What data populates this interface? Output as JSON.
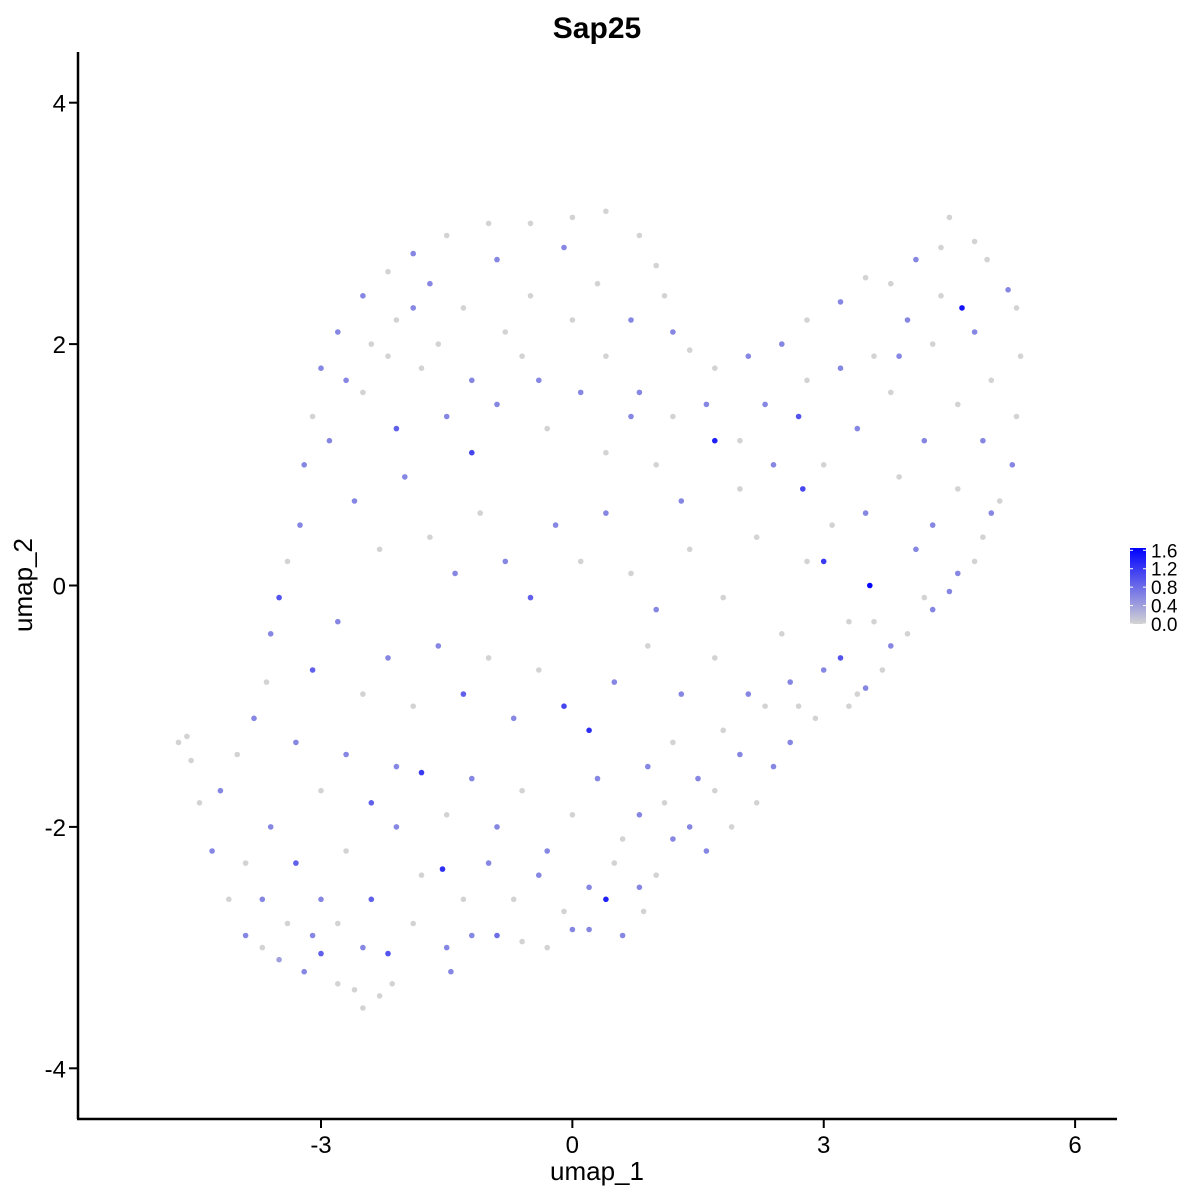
{
  "chart_data": {
    "type": "scatter",
    "title": "Sap25",
    "xlabel": "umap_1",
    "ylabel": "umap_2",
    "xlim": [
      -5.9,
      6.5
    ],
    "ylim": [
      -4.42,
      4.42
    ],
    "x_ticks": [
      -3,
      0,
      3,
      6
    ],
    "y_ticks": [
      -4,
      -2,
      0,
      2,
      4
    ],
    "x_tick_labels": [
      "-3",
      "0",
      "3",
      "6"
    ],
    "y_tick_labels": [
      "-4",
      "-2",
      "0",
      "2",
      "4"
    ],
    "grid": false,
    "legend": {
      "placement": "right",
      "type": "colorbar",
      "title": "",
      "min": 0.0,
      "max": 1.65,
      "breaks": [
        0.0,
        0.4,
        0.8,
        1.2,
        1.6
      ],
      "labels": [
        "0.0",
        "0.4",
        "0.8",
        "1.2",
        "1.6"
      ],
      "low_color": "#d3d3d3",
      "high_color": "#0000ff"
    },
    "series": [
      {
        "points": [
          [
            -4.6,
            -1.25,
            0.0
          ],
          [
            -4.7,
            -1.3,
            0.0
          ],
          [
            -4.55,
            -1.45,
            0.0
          ],
          [
            -4.45,
            -1.8,
            0.0
          ],
          [
            -4.3,
            -2.2,
            0.6
          ],
          [
            -4.1,
            -2.6,
            0.0
          ],
          [
            -3.9,
            -2.9,
            0.6
          ],
          [
            -3.7,
            -3.0,
            0.0
          ],
          [
            -3.5,
            -3.1,
            0.4
          ],
          [
            -3.2,
            -3.2,
            0.6
          ],
          [
            -3.0,
            -3.05,
            0.9
          ],
          [
            -2.8,
            -3.3,
            0.0
          ],
          [
            -2.6,
            -3.35,
            0.0
          ],
          [
            -2.5,
            -3.5,
            0.0
          ],
          [
            -2.3,
            -3.4,
            0.0
          ],
          [
            -2.15,
            -3.3,
            0.0
          ],
          [
            -2.2,
            -3.05,
            1.0
          ],
          [
            -1.45,
            -3.2,
            0.6
          ],
          [
            -1.5,
            -3.0,
            0.6
          ],
          [
            -0.9,
            -2.9,
            0.8
          ],
          [
            -0.3,
            -3.0,
            0.0
          ],
          [
            0.2,
            -2.85,
            0.6
          ],
          [
            0.4,
            -2.6,
            1.4
          ],
          [
            0.6,
            -2.9,
            0.6
          ],
          [
            0.85,
            -2.7,
            0.0
          ],
          [
            1.0,
            -2.4,
            0.0
          ],
          [
            1.2,
            -2.1,
            0.6
          ],
          [
            1.6,
            -2.2,
            0.6
          ],
          [
            1.9,
            -2.0,
            0.0
          ],
          [
            2.2,
            -1.8,
            0.0
          ],
          [
            2.6,
            -1.3,
            0.6
          ],
          [
            2.9,
            -1.1,
            0.0
          ],
          [
            3.3,
            -1.0,
            0.0
          ],
          [
            3.5,
            -0.85,
            0.6
          ],
          [
            3.7,
            -0.7,
            0.0
          ],
          [
            4.0,
            -0.4,
            0.0
          ],
          [
            4.3,
            -0.2,
            0.6
          ],
          [
            4.6,
            0.1,
            0.6
          ],
          [
            4.9,
            0.4,
            0.0
          ],
          [
            5.1,
            0.7,
            0.0
          ],
          [
            5.25,
            1.0,
            0.6
          ],
          [
            5.3,
            1.4,
            0.0
          ],
          [
            5.35,
            1.9,
            0.0
          ],
          [
            5.3,
            2.3,
            0.0
          ],
          [
            5.2,
            2.45,
            0.6
          ],
          [
            4.95,
            2.7,
            0.0
          ],
          [
            4.8,
            2.85,
            0.0
          ],
          [
            4.5,
            3.05,
            0.0
          ],
          [
            4.4,
            2.8,
            0.0
          ],
          [
            4.1,
            2.7,
            0.6
          ],
          [
            3.8,
            2.5,
            0.0
          ],
          [
            3.5,
            2.55,
            0.0
          ],
          [
            3.2,
            2.35,
            0.6
          ],
          [
            2.8,
            2.2,
            0.0
          ],
          [
            2.5,
            2.0,
            0.6
          ],
          [
            2.1,
            1.9,
            0.6
          ],
          [
            1.7,
            1.8,
            0.0
          ],
          [
            1.4,
            1.95,
            0.0
          ],
          [
            1.2,
            2.1,
            0.6
          ],
          [
            1.1,
            2.4,
            0.0
          ],
          [
            1.0,
            2.65,
            0.0
          ],
          [
            0.8,
            2.9,
            0.0
          ],
          [
            0.4,
            3.1,
            0.0
          ],
          [
            0.0,
            3.05,
            0.0
          ],
          [
            -0.5,
            3.0,
            0.0
          ],
          [
            -1.0,
            3.0,
            0.0
          ],
          [
            -1.5,
            2.9,
            0.0
          ],
          [
            -1.9,
            2.75,
            0.6
          ],
          [
            -2.2,
            2.6,
            0.0
          ],
          [
            -2.5,
            2.4,
            0.6
          ],
          [
            -2.8,
            2.1,
            0.6
          ],
          [
            -3.0,
            1.8,
            0.6
          ],
          [
            -3.1,
            1.4,
            0.0
          ],
          [
            -3.2,
            1.0,
            0.6
          ],
          [
            -3.25,
            0.5,
            0.6
          ],
          [
            -3.4,
            0.2,
            0.0
          ],
          [
            -3.5,
            -0.1,
            1.0
          ],
          [
            -3.6,
            -0.4,
            0.6
          ],
          [
            -3.65,
            -0.8,
            0.0
          ],
          [
            -3.8,
            -1.1,
            0.6
          ],
          [
            -4.0,
            -1.4,
            0.0
          ],
          [
            -4.2,
            -1.7,
            0.6
          ],
          [
            -2.9,
            1.2,
            0.6
          ],
          [
            -2.5,
            1.6,
            0.0
          ],
          [
            -2.1,
            1.3,
            0.9
          ],
          [
            -1.8,
            1.8,
            0.0
          ],
          [
            -1.5,
            1.4,
            0.6
          ],
          [
            -1.2,
            1.1,
            1.1
          ],
          [
            -0.9,
            1.5,
            0.6
          ],
          [
            -0.6,
            1.9,
            0.0
          ],
          [
            -0.3,
            1.3,
            0.0
          ],
          [
            0.1,
            1.6,
            0.6
          ],
          [
            0.4,
            1.1,
            0.0
          ],
          [
            0.7,
            1.4,
            0.6
          ],
          [
            1.0,
            1.0,
            0.0
          ],
          [
            1.3,
            0.7,
            0.6
          ],
          [
            1.7,
            1.2,
            1.4
          ],
          [
            2.0,
            0.8,
            0.0
          ],
          [
            2.3,
            1.5,
            0.6
          ],
          [
            2.7,
            1.4,
            1.0
          ],
          [
            3.0,
            1.0,
            0.0
          ],
          [
            3.4,
            1.3,
            0.6
          ],
          [
            3.8,
            1.6,
            0.0
          ],
          [
            4.2,
            1.2,
            0.6
          ],
          [
            4.6,
            1.5,
            0.0
          ],
          [
            4.65,
            2.3,
            1.5
          ],
          [
            4.3,
            2.0,
            0.0
          ],
          [
            3.9,
            1.9,
            0.6
          ],
          [
            2.75,
            0.8,
            1.1
          ],
          [
            3.0,
            0.2,
            1.2
          ],
          [
            3.55,
            0.0,
            1.6
          ],
          [
            3.2,
            -0.6,
            1.0
          ],
          [
            3.6,
            -0.3,
            0.0
          ],
          [
            4.1,
            0.3,
            0.6
          ],
          [
            -2.6,
            0.7,
            0.6
          ],
          [
            -2.3,
            0.3,
            0.0
          ],
          [
            -2.0,
            0.9,
            0.6
          ],
          [
            -1.7,
            0.4,
            0.0
          ],
          [
            -1.4,
            0.1,
            0.6
          ],
          [
            -1.1,
            0.6,
            0.0
          ],
          [
            -0.8,
            0.2,
            0.6
          ],
          [
            -0.5,
            -0.1,
            0.9
          ],
          [
            -0.2,
            0.5,
            0.6
          ],
          [
            0.1,
            0.2,
            0.0
          ],
          [
            0.4,
            0.6,
            0.6
          ],
          [
            0.7,
            0.1,
            0.0
          ],
          [
            1.0,
            -0.2,
            0.6
          ],
          [
            1.4,
            0.3,
            0.0
          ],
          [
            1.8,
            -0.1,
            0.0
          ],
          [
            2.2,
            0.4,
            0.0
          ],
          [
            2.5,
            -0.4,
            0.0
          ],
          [
            2.1,
            -0.9,
            0.6
          ],
          [
            1.7,
            -0.6,
            0.0
          ],
          [
            1.3,
            -0.9,
            0.6
          ],
          [
            0.9,
            -0.5,
            0.0
          ],
          [
            0.5,
            -0.8,
            0.6
          ],
          [
            0.2,
            -1.2,
            1.3
          ],
          [
            -0.1,
            -1.0,
            1.1
          ],
          [
            -0.4,
            -0.7,
            0.0
          ],
          [
            -0.7,
            -1.1,
            0.6
          ],
          [
            -1.0,
            -0.6,
            0.0
          ],
          [
            -1.3,
            -0.9,
            0.9
          ],
          [
            -1.6,
            -0.5,
            0.6
          ],
          [
            -1.9,
            -1.0,
            0.0
          ],
          [
            -2.2,
            -0.6,
            0.6
          ],
          [
            -2.5,
            -0.9,
            0.0
          ],
          [
            -2.8,
            -0.3,
            0.6
          ],
          [
            -3.1,
            -0.7,
            0.9
          ],
          [
            -3.3,
            -1.3,
            0.6
          ],
          [
            -3.0,
            -1.7,
            0.0
          ],
          [
            -2.7,
            -1.4,
            0.6
          ],
          [
            -2.4,
            -1.8,
            0.9
          ],
          [
            -2.1,
            -1.5,
            0.6
          ],
          [
            -1.8,
            -1.55,
            1.2
          ],
          [
            -1.5,
            -1.9,
            0.0
          ],
          [
            -1.2,
            -1.6,
            0.6
          ],
          [
            -0.9,
            -2.0,
            0.6
          ],
          [
            -0.6,
            -1.7,
            0.0
          ],
          [
            -0.3,
            -2.2,
            0.6
          ],
          [
            0.0,
            -1.9,
            0.0
          ],
          [
            0.3,
            -1.6,
            0.6
          ],
          [
            0.6,
            -2.1,
            0.0
          ],
          [
            0.9,
            -1.5,
            0.6
          ],
          [
            1.2,
            -1.3,
            0.0
          ],
          [
            1.5,
            -1.6,
            0.6
          ],
          [
            1.8,
            -1.2,
            0.0
          ],
          [
            -3.6,
            -2.0,
            0.6
          ],
          [
            -3.3,
            -2.3,
            0.9
          ],
          [
            -3.0,
            -2.6,
            0.6
          ],
          [
            -2.7,
            -2.2,
            0.0
          ],
          [
            -2.4,
            -2.6,
            0.9
          ],
          [
            -2.1,
            -2.0,
            0.6
          ],
          [
            -1.8,
            -2.4,
            0.0
          ],
          [
            -1.55,
            -2.35,
            1.3
          ],
          [
            -1.3,
            -2.6,
            0.0
          ],
          [
            -1.0,
            -2.3,
            0.6
          ],
          [
            -0.7,
            -2.6,
            0.0
          ],
          [
            -0.4,
            -2.4,
            0.6
          ],
          [
            -0.1,
            -2.7,
            0.0
          ],
          [
            0.2,
            -2.5,
            0.6
          ],
          [
            0.5,
            -2.3,
            0.0
          ],
          [
            0.8,
            -2.5,
            0.6
          ],
          [
            -3.9,
            -2.3,
            0.0
          ],
          [
            -3.7,
            -2.6,
            0.6
          ],
          [
            -3.4,
            -2.8,
            0.0
          ],
          [
            -3.1,
            -2.9,
            0.6
          ],
          [
            -2.8,
            -2.8,
            0.0
          ],
          [
            -2.5,
            -3.0,
            0.6
          ],
          [
            -1.9,
            -2.8,
            0.0
          ],
          [
            -1.2,
            -2.9,
            0.6
          ],
          [
            -0.6,
            -2.95,
            0.0
          ],
          [
            0.0,
            -2.85,
            0.6
          ],
          [
            -2.1,
            2.2,
            0.0
          ],
          [
            -1.7,
            2.5,
            0.6
          ],
          [
            -1.3,
            2.3,
            0.0
          ],
          [
            -0.9,
            2.7,
            0.6
          ],
          [
            -0.5,
            2.4,
            0.0
          ],
          [
            -0.1,
            2.8,
            0.6
          ],
          [
            0.3,
            2.5,
            0.0
          ],
          [
            0.7,
            2.2,
            0.6
          ],
          [
            -2.4,
            2.0,
            0.0
          ],
          [
            -2.7,
            1.7,
            0.6
          ],
          [
            -2.2,
            1.9,
            0.0
          ],
          [
            -1.9,
            2.3,
            0.6
          ],
          [
            -1.6,
            2.0,
            0.0
          ],
          [
            -1.2,
            1.7,
            0.6
          ],
          [
            -0.8,
            2.1,
            0.0
          ],
          [
            -0.4,
            1.7,
            0.6
          ],
          [
            0.0,
            2.2,
            0.0
          ],
          [
            0.4,
            1.9,
            0.0
          ],
          [
            0.8,
            1.6,
            0.6
          ],
          [
            1.2,
            1.4,
            0.0
          ],
          [
            1.6,
            1.5,
            0.6
          ],
          [
            2.0,
            1.2,
            0.0
          ],
          [
            2.4,
            1.0,
            0.6
          ],
          [
            2.8,
            1.7,
            0.0
          ],
          [
            3.2,
            1.8,
            0.6
          ],
          [
            3.6,
            1.9,
            0.0
          ],
          [
            4.0,
            2.2,
            0.6
          ],
          [
            4.4,
            2.4,
            0.0
          ],
          [
            4.8,
            2.1,
            0.6
          ],
          [
            5.0,
            1.7,
            0.0
          ],
          [
            4.9,
            1.2,
            0.6
          ],
          [
            4.6,
            0.8,
            0.0
          ],
          [
            4.3,
            0.5,
            0.6
          ],
          [
            3.9,
            0.9,
            0.0
          ],
          [
            3.5,
            0.6,
            0.6
          ],
          [
            3.1,
            0.5,
            0.0
          ],
          [
            2.8,
            0.2,
            0.0
          ],
          [
            2.6,
            -0.8,
            0.6
          ],
          [
            2.3,
            -1.0,
            0.0
          ],
          [
            2.0,
            -1.4,
            0.6
          ],
          [
            1.7,
            -1.7,
            0.0
          ],
          [
            1.4,
            -2.0,
            0.6
          ],
          [
            1.1,
            -1.8,
            0.0
          ],
          [
            0.8,
            -1.9,
            0.6
          ],
          [
            3.3,
            -0.3,
            0.0
          ],
          [
            3.0,
            -0.7,
            0.6
          ],
          [
            2.7,
            -1.0,
            0.0
          ],
          [
            2.4,
            -1.5,
            0.6
          ],
          [
            3.4,
            -0.9,
            0.0
          ],
          [
            3.8,
            -0.5,
            0.6
          ],
          [
            4.2,
            -0.1,
            0.0
          ],
          [
            4.5,
            -0.05,
            0.6
          ],
          [
            4.8,
            0.2,
            0.0
          ],
          [
            5.0,
            0.6,
            0.6
          ]
        ]
      }
    ]
  }
}
